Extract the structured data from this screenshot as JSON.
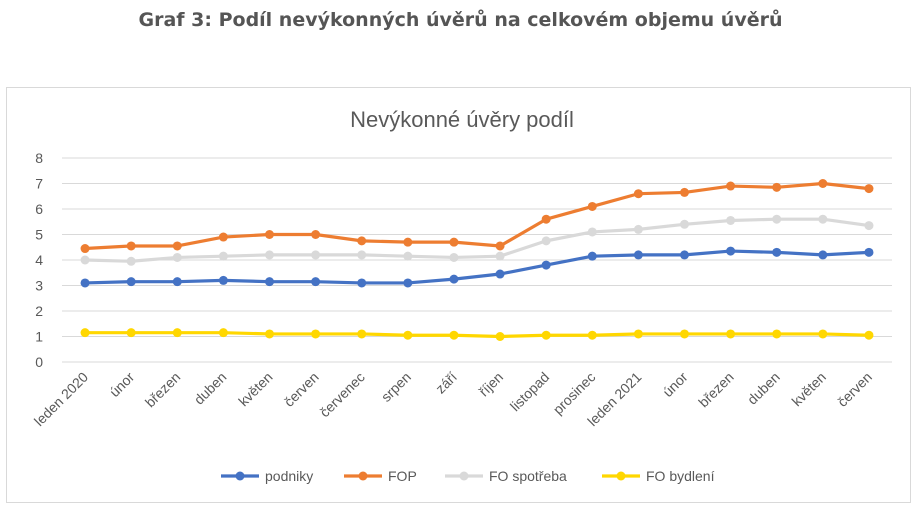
{
  "page": {
    "title": "Graf 3: Podíl nevýkonných úvěrů na celkovém objemu úvěrů"
  },
  "chart_data": {
    "type": "line",
    "title": "Nevýkonné úvěry podíl",
    "xlabel": "",
    "ylabel": "",
    "ylim": [
      0,
      8
    ],
    "yticks": [
      0,
      1,
      2,
      3,
      4,
      5,
      6,
      7,
      8
    ],
    "grid": "horizontal",
    "legend": "bottom",
    "categories": [
      "leden 2020",
      "únor",
      "březen",
      "duben",
      "květen",
      "červen",
      "červenec",
      "srpen",
      "září",
      "říjen",
      "listopad",
      "prosinec",
      "leden 2021",
      "únor",
      "březen",
      "duben",
      "květen",
      "červen"
    ],
    "series": [
      {
        "name": "podniky",
        "color": "#4472c4",
        "values": [
          3.1,
          3.15,
          3.15,
          3.2,
          3.15,
          3.15,
          3.1,
          3.1,
          3.25,
          3.45,
          3.8,
          4.15,
          4.2,
          4.2,
          4.35,
          4.3,
          4.2,
          4.3
        ]
      },
      {
        "name": "FOP",
        "color": "#ed7d31",
        "values": [
          4.45,
          4.55,
          4.55,
          4.9,
          5.0,
          5.0,
          4.75,
          4.7,
          4.7,
          4.55,
          5.6,
          6.1,
          6.6,
          6.65,
          6.9,
          6.85,
          7.0,
          6.8
        ]
      },
      {
        "name": "FO spotřeba",
        "color": "#d9d9d9",
        "values": [
          4.0,
          3.95,
          4.1,
          4.15,
          4.2,
          4.2,
          4.2,
          4.15,
          4.1,
          4.15,
          4.75,
          5.1,
          5.2,
          5.4,
          5.55,
          5.6,
          5.6,
          5.35
        ]
      },
      {
        "name": "FO bydlení",
        "color": "#ffd700",
        "values": [
          1.15,
          1.15,
          1.15,
          1.15,
          1.1,
          1.1,
          1.1,
          1.05,
          1.05,
          1.0,
          1.05,
          1.05,
          1.1,
          1.1,
          1.1,
          1.1,
          1.1,
          1.05
        ]
      }
    ]
  }
}
